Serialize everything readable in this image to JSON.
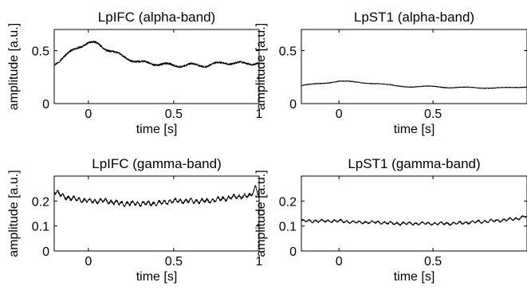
{
  "chart_data": [
    {
      "type": "line",
      "title": "LpIFC (alpha-band)",
      "xlabel": "time [s]",
      "ylabel": "amplitude [a.u.]",
      "xlim": [
        -0.2,
        1.0
      ],
      "ylim": [
        0,
        0.7
      ],
      "xticks": [
        0,
        0.5,
        1
      ],
      "xtick_labels": [
        "0",
        "0.5",
        "1"
      ],
      "yticks": [
        0,
        0.5
      ],
      "ytick_labels": [
        "0",
        "0.5"
      ],
      "series": [
        {
          "x": [
            -0.2,
            -0.15,
            -0.1,
            -0.05,
            0,
            0.05,
            0.1,
            0.15,
            0.2,
            0.25,
            0.3,
            0.4,
            0.5,
            0.6,
            0.7,
            0.8,
            0.9,
            1.0
          ],
          "y": [
            0.38,
            0.44,
            0.49,
            0.54,
            0.57,
            0.56,
            0.52,
            0.49,
            0.45,
            0.42,
            0.39,
            0.37,
            0.36,
            0.37,
            0.36,
            0.38,
            0.38,
            0.39
          ]
        }
      ]
    },
    {
      "type": "line",
      "title": "LpST1 (alpha-band)",
      "xlabel": "time [s]",
      "ylabel": "amplitude [a.u.]",
      "xlim": [
        -0.2,
        1.0
      ],
      "ylim": [
        0,
        0.7
      ],
      "xticks": [
        0,
        0.5
      ],
      "xtick_labels": [
        "0",
        "0.5"
      ],
      "yticks": [
        0,
        0.5
      ],
      "ytick_labels": [
        "0",
        "0.5"
      ],
      "series": [
        {
          "x": [
            -0.2,
            -0.1,
            0,
            0.1,
            0.2,
            0.3,
            0.4,
            0.5,
            0.6,
            0.7,
            0.8,
            0.9,
            1.0
          ],
          "y": [
            0.17,
            0.19,
            0.21,
            0.2,
            0.19,
            0.17,
            0.16,
            0.16,
            0.15,
            0.15,
            0.15,
            0.15,
            0.16
          ]
        }
      ]
    },
    {
      "type": "line",
      "title": "LpIFC (gamma-band)",
      "xlabel": "time [s]",
      "ylabel": "amplitude [a.u.]",
      "xlim": [
        -0.2,
        1.0
      ],
      "ylim": [
        0,
        0.3
      ],
      "xticks": [
        0,
        0.5,
        1
      ],
      "xtick_labels": [
        "0",
        "0.5",
        "1"
      ],
      "yticks": [
        0,
        0.1,
        0.2
      ],
      "ytick_labels": [
        "0",
        "0.1",
        "0.2"
      ],
      "series": [
        {
          "x": [
            -0.2,
            -0.15,
            -0.1,
            0,
            0.1,
            0.2,
            0.3,
            0.4,
            0.5,
            0.6,
            0.7,
            0.8,
            0.9,
            0.95,
            0.98,
            1.0
          ],
          "y": [
            0.24,
            0.22,
            0.21,
            0.2,
            0.2,
            0.19,
            0.19,
            0.19,
            0.2,
            0.2,
            0.2,
            0.21,
            0.22,
            0.22,
            0.26,
            0.22
          ]
        }
      ]
    },
    {
      "type": "line",
      "title": "LpST1 (gamma-band)",
      "xlabel": "time [s]",
      "ylabel": "amplitude [a.u.]",
      "xlim": [
        -0.2,
        1.0
      ],
      "ylim": [
        0,
        0.3
      ],
      "xticks": [
        0,
        0.5
      ],
      "xtick_labels": [
        "0",
        "0.5"
      ],
      "yticks": [
        0,
        0.1,
        0.2
      ],
      "ytick_labels": [
        "0",
        "0.1",
        "0.2"
      ],
      "series": [
        {
          "x": [
            -0.2,
            -0.1,
            0,
            0.1,
            0.2,
            0.3,
            0.4,
            0.5,
            0.6,
            0.7,
            0.8,
            0.9,
            0.95,
            1.0
          ],
          "y": [
            0.12,
            0.12,
            0.12,
            0.115,
            0.115,
            0.11,
            0.11,
            0.11,
            0.11,
            0.115,
            0.12,
            0.125,
            0.13,
            0.14
          ]
        }
      ]
    }
  ]
}
